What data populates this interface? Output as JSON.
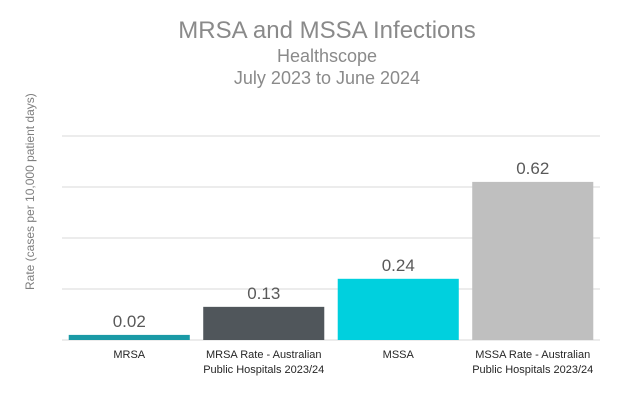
{
  "chart_data": {
    "type": "bar",
    "title": "MRSA and MSSA Infections",
    "subtitle": "Healthscope",
    "subtitle2": "July 2023 to June 2024",
    "xlabel": "",
    "ylabel": "Rate (cases per 10,000 patient days)",
    "ylim": [
      0,
      0.8
    ],
    "grid": true,
    "categories": [
      [
        "MRSA"
      ],
      [
        "MRSA Rate - Australian",
        "Public Hospitals 2023/24"
      ],
      [
        "MSSA"
      ],
      [
        "MSSA Rate - Australian",
        "Public Hospitals 2023/24"
      ]
    ],
    "values": [
      0.02,
      0.13,
      0.24,
      0.62
    ],
    "data_labels": [
      "0.02",
      "0.13",
      "0.24",
      "0.62"
    ],
    "colors": [
      "#1a9aa6",
      "#50565b",
      "#00d0de",
      "#bfbfbf"
    ]
  }
}
